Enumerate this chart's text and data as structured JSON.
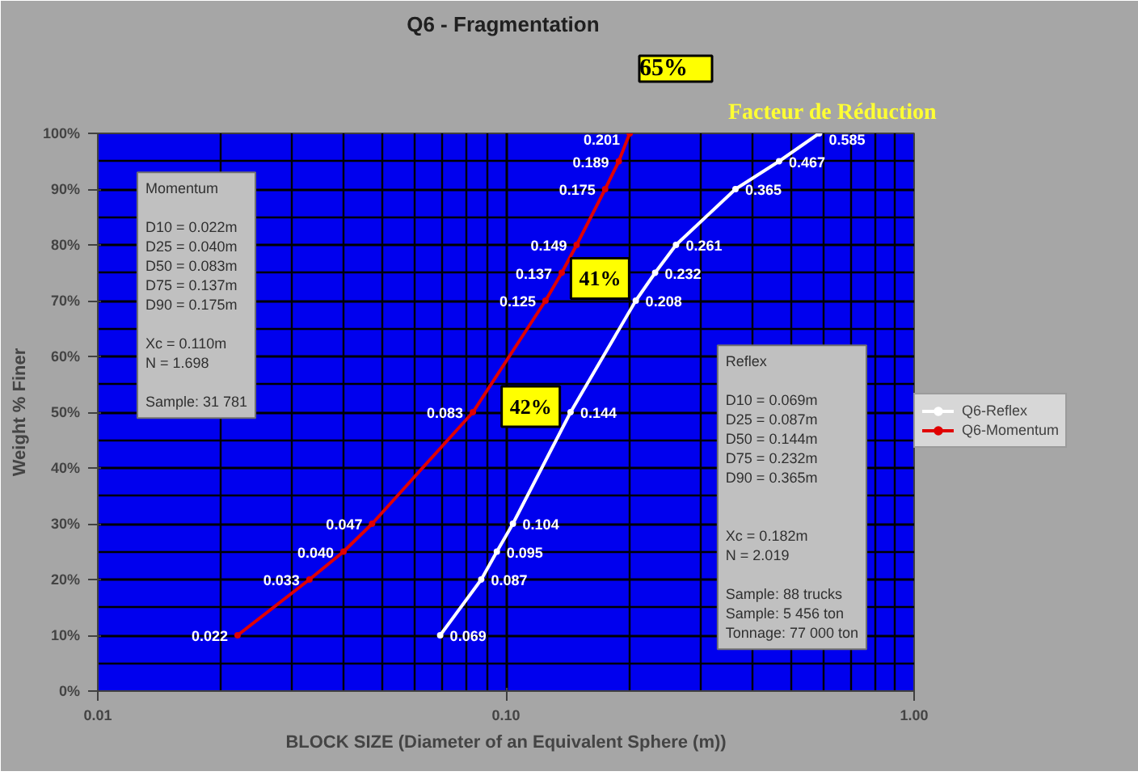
{
  "chart_data": {
    "type": "line",
    "title": "Q6  - Fragmentation",
    "xlabel": "BLOCK SIZE (Diameter of an Equivalent Sphere (m))",
    "ylabel": "Weight % Finer",
    "log": "x",
    "xlim": [
      0.01,
      1
    ],
    "xticks": [
      {
        "value": 0.01,
        "label": "0.01"
      },
      {
        "value": 0.1,
        "label": "0.10"
      },
      {
        "value": 1,
        "label": "1.00"
      }
    ],
    "ylim": [
      0,
      100
    ],
    "yticks": [
      {
        "value": 0,
        "label": "0%"
      },
      {
        "value": 10,
        "label": "10%"
      },
      {
        "value": 20,
        "label": "20%"
      },
      {
        "value": 30,
        "label": "30%"
      },
      {
        "value": 40,
        "label": "40%"
      },
      {
        "value": 50,
        "label": "50%"
      },
      {
        "value": 60,
        "label": "60%"
      },
      {
        "value": 70,
        "label": "70%"
      },
      {
        "value": 80,
        "label": "80%"
      },
      {
        "value": 90,
        "label": "90%"
      },
      {
        "value": 100,
        "label": "100%"
      }
    ],
    "grid": true,
    "legend": "right",
    "marker": "circle",
    "line_style": "solid",
    "series": [
      {
        "name": "Q6-Reflex",
        "color": "#ffffff",
        "x": [
          0.069,
          0.087,
          0.095,
          0.104,
          0.144,
          0.208,
          0.232,
          0.261,
          0.365,
          0.467,
          0.585
        ],
        "values": [
          10,
          20,
          25,
          30,
          50,
          70,
          75,
          80,
          90,
          95,
          100
        ]
      },
      {
        "name": "Q6-Momentum",
        "color": "#e00000",
        "x": [
          0.022,
          0.033,
          0.04,
          0.047,
          0.083,
          0.125,
          0.137,
          0.149,
          0.175,
          0.189,
          0.201
        ],
        "values": [
          10,
          20,
          25,
          30,
          50,
          70,
          75,
          80,
          90,
          95,
          100
        ]
      }
    ],
    "annotations": [
      "Facteur de Réduction",
      "65%",
      "Momentum\n\nD10 = 0.022m\nD25 = 0.040m\nD50 = 0.083m\nD75 = 0.137m\nD90 = 0.175m\n\nXc      = 0.110m\nN        = 1.698\n\nSample: 31 781",
      "Reflex\n\nD10 = 0.069m\nD25 = 0.087m\nD50 = 0.144m\nD75 = 0.232m\nD90 = 0.365m\n\n\nXc       = 0.182m\nN         = 2.019\n\nSample: 88 trucks\nSample: 5 456 ton\nTonnage: 77 000 ton",
      {
        "text": "41%",
        "x": 0.17,
        "y": 74
      },
      {
        "text": "42%",
        "x": 0.115,
        "y": 51
      },
      {
        "text": "0.069",
        "x": 0.069,
        "y": 10
      },
      {
        "text": "0.087",
        "x": 0.087,
        "y": 20
      },
      {
        "text": "0.095",
        "x": 0.095,
        "y": 25
      },
      {
        "text": "0.104",
        "x": 0.104,
        "y": 30
      },
      {
        "text": "0.144",
        "x": 0.144,
        "y": 50
      },
      {
        "text": "0.208",
        "x": 0.208,
        "y": 70
      },
      {
        "text": "0.232",
        "x": 0.232,
        "y": 75
      },
      {
        "text": "0.261",
        "x": 0.261,
        "y": 80
      },
      {
        "text": "0.365",
        "x": 0.365,
        "y": 90
      },
      {
        "text": "0.467",
        "x": 0.467,
        "y": 95
      },
      {
        "text": "0.585",
        "x": 0.585,
        "y": 100
      },
      {
        "text": "0.022",
        "x": 0.022,
        "y": 10
      },
      {
        "text": "0.033",
        "x": 0.033,
        "y": 20
      },
      {
        "text": "0.040",
        "x": 0.04,
        "y": 25
      },
      {
        "text": "0.047",
        "x": 0.047,
        "y": 30
      },
      {
        "text": "0.083",
        "x": 0.083,
        "y": 50
      },
      {
        "text": "0.125",
        "x": 0.125,
        "y": 70
      },
      {
        "text": "0.137",
        "x": 0.137,
        "y": 75
      },
      {
        "text": "0.149",
        "x": 0.149,
        "y": 80
      },
      {
        "text": "0.175",
        "x": 0.175,
        "y": 90
      },
      {
        "text": "0.189",
        "x": 0.189,
        "y": 95
      },
      {
        "text": "0.201",
        "x": 0.201,
        "y": 100
      }
    ]
  }
}
